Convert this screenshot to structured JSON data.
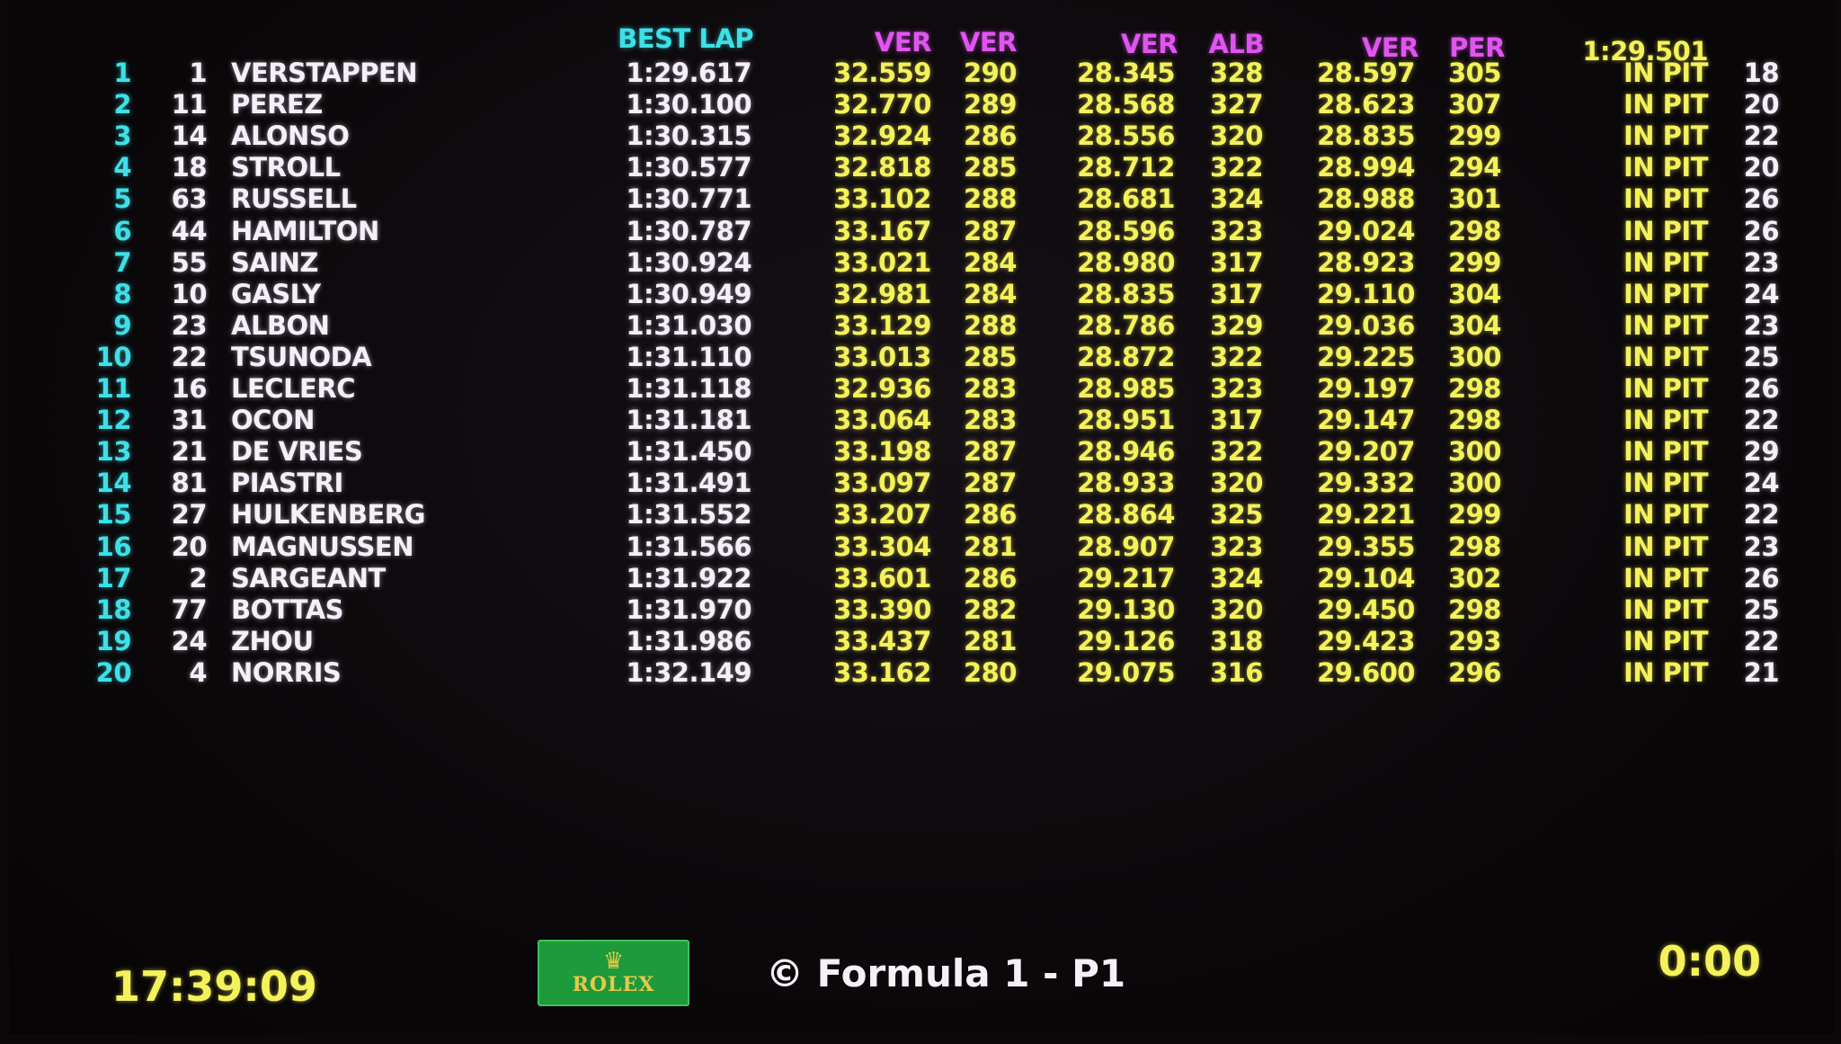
{
  "headers": {
    "best_lap": "BEST LAP",
    "s1_best": "VER",
    "sp1_best": "VER",
    "s2_best": "VER",
    "sp2_best": "ALB",
    "s3_best": "VER",
    "sp3_best": "PER",
    "ideal_lap": "1:29.501"
  },
  "rows": [
    {
      "pos": "1",
      "num": "1",
      "name": "VERSTAPPEN",
      "best": "1:29.617",
      "s1": "32.559",
      "sp1": "290",
      "s2": "28.345",
      "sp2": "328",
      "s3": "28.597",
      "sp3": "305",
      "status": "IN PIT",
      "laps": "18"
    },
    {
      "pos": "2",
      "num": "11",
      "name": "PEREZ",
      "best": "1:30.100",
      "s1": "32.770",
      "sp1": "289",
      "s2": "28.568",
      "sp2": "327",
      "s3": "28.623",
      "sp3": "307",
      "status": "IN PIT",
      "laps": "20"
    },
    {
      "pos": "3",
      "num": "14",
      "name": "ALONSO",
      "best": "1:30.315",
      "s1": "32.924",
      "sp1": "286",
      "s2": "28.556",
      "sp2": "320",
      "s3": "28.835",
      "sp3": "299",
      "status": "IN PIT",
      "laps": "22"
    },
    {
      "pos": "4",
      "num": "18",
      "name": "STROLL",
      "best": "1:30.577",
      "s1": "32.818",
      "sp1": "285",
      "s2": "28.712",
      "sp2": "322",
      "s3": "28.994",
      "sp3": "294",
      "status": "IN PIT",
      "laps": "20"
    },
    {
      "pos": "5",
      "num": "63",
      "name": "RUSSELL",
      "best": "1:30.771",
      "s1": "33.102",
      "sp1": "288",
      "s2": "28.681",
      "sp2": "324",
      "s3": "28.988",
      "sp3": "301",
      "status": "IN PIT",
      "laps": "26"
    },
    {
      "pos": "6",
      "num": "44",
      "name": "HAMILTON",
      "best": "1:30.787",
      "s1": "33.167",
      "sp1": "287",
      "s2": "28.596",
      "sp2": "323",
      "s3": "29.024",
      "sp3": "298",
      "status": "IN PIT",
      "laps": "26"
    },
    {
      "pos": "7",
      "num": "55",
      "name": "SAINZ",
      "best": "1:30.924",
      "s1": "33.021",
      "sp1": "284",
      "s2": "28.980",
      "sp2": "317",
      "s3": "28.923",
      "sp3": "299",
      "status": "IN PIT",
      "laps": "23"
    },
    {
      "pos": "8",
      "num": "10",
      "name": "GASLY",
      "best": "1:30.949",
      "s1": "32.981",
      "sp1": "284",
      "s2": "28.835",
      "sp2": "317",
      "s3": "29.110",
      "sp3": "304",
      "status": "IN PIT",
      "laps": "24"
    },
    {
      "pos": "9",
      "num": "23",
      "name": "ALBON",
      "best": "1:31.030",
      "s1": "33.129",
      "sp1": "288",
      "s2": "28.786",
      "sp2": "329",
      "s3": "29.036",
      "sp3": "304",
      "status": "IN PIT",
      "laps": "23"
    },
    {
      "pos": "10",
      "num": "22",
      "name": "TSUNODA",
      "best": "1:31.110",
      "s1": "33.013",
      "sp1": "285",
      "s2": "28.872",
      "sp2": "322",
      "s3": "29.225",
      "sp3": "300",
      "status": "IN PIT",
      "laps": "25"
    },
    {
      "pos": "11",
      "num": "16",
      "name": "LECLERC",
      "best": "1:31.118",
      "s1": "32.936",
      "sp1": "283",
      "s2": "28.985",
      "sp2": "323",
      "s3": "29.197",
      "sp3": "298",
      "status": "IN PIT",
      "laps": "26"
    },
    {
      "pos": "12",
      "num": "31",
      "name": "OCON",
      "best": "1:31.181",
      "s1": "33.064",
      "sp1": "283",
      "s2": "28.951",
      "sp2": "317",
      "s3": "29.147",
      "sp3": "298",
      "status": "IN PIT",
      "laps": "22"
    },
    {
      "pos": "13",
      "num": "21",
      "name": "DE VRIES",
      "best": "1:31.450",
      "s1": "33.198",
      "sp1": "287",
      "s2": "28.946",
      "sp2": "322",
      "s3": "29.207",
      "sp3": "300",
      "status": "IN PIT",
      "laps": "29"
    },
    {
      "pos": "14",
      "num": "81",
      "name": "PIASTRI",
      "best": "1:31.491",
      "s1": "33.097",
      "sp1": "287",
      "s2": "28.933",
      "sp2": "320",
      "s3": "29.332",
      "sp3": "300",
      "status": "IN PIT",
      "laps": "24"
    },
    {
      "pos": "15",
      "num": "27",
      "name": "HULKENBERG",
      "best": "1:31.552",
      "s1": "33.207",
      "sp1": "286",
      "s2": "28.864",
      "sp2": "325",
      "s3": "29.221",
      "sp3": "299",
      "status": "IN PIT",
      "laps": "22"
    },
    {
      "pos": "16",
      "num": "20",
      "name": "MAGNUSSEN",
      "best": "1:31.566",
      "s1": "33.304",
      "sp1": "281",
      "s2": "28.907",
      "sp2": "323",
      "s3": "29.355",
      "sp3": "298",
      "status": "IN PIT",
      "laps": "23"
    },
    {
      "pos": "17",
      "num": "2",
      "name": "SARGEANT",
      "best": "1:31.922",
      "s1": "33.601",
      "sp1": "286",
      "s2": "29.217",
      "sp2": "324",
      "s3": "29.104",
      "sp3": "302",
      "status": "IN PIT",
      "laps": "26"
    },
    {
      "pos": "18",
      "num": "77",
      "name": "BOTTAS",
      "best": "1:31.970",
      "s1": "33.390",
      "sp1": "282",
      "s2": "29.130",
      "sp2": "320",
      "s3": "29.450",
      "sp3": "298",
      "status": "IN PIT",
      "laps": "25"
    },
    {
      "pos": "19",
      "num": "24",
      "name": "ZHOU",
      "best": "1:31.986",
      "s1": "33.437",
      "sp1": "281",
      "s2": "29.126",
      "sp2": "318",
      "s3": "29.423",
      "sp3": "293",
      "status": "IN PIT",
      "laps": "22"
    },
    {
      "pos": "20",
      "num": "4",
      "name": "NORRIS",
      "best": "1:32.149",
      "s1": "33.162",
      "sp1": "280",
      "s2": "29.075",
      "sp2": "316",
      "s3": "29.600",
      "sp3": "296",
      "status": "IN PIT",
      "laps": "21"
    }
  ],
  "footer": {
    "clock": "17:39:09",
    "sponsor_logo": "ROLEX",
    "session": "© Formula 1 - P1",
    "remaining": "0:00"
  },
  "colors": {
    "position": "#3ee0e8",
    "best_header": "#3ee0e8",
    "purple": "#e055f0",
    "sector": "#f4f25a",
    "text": "#f4f0f8"
  }
}
